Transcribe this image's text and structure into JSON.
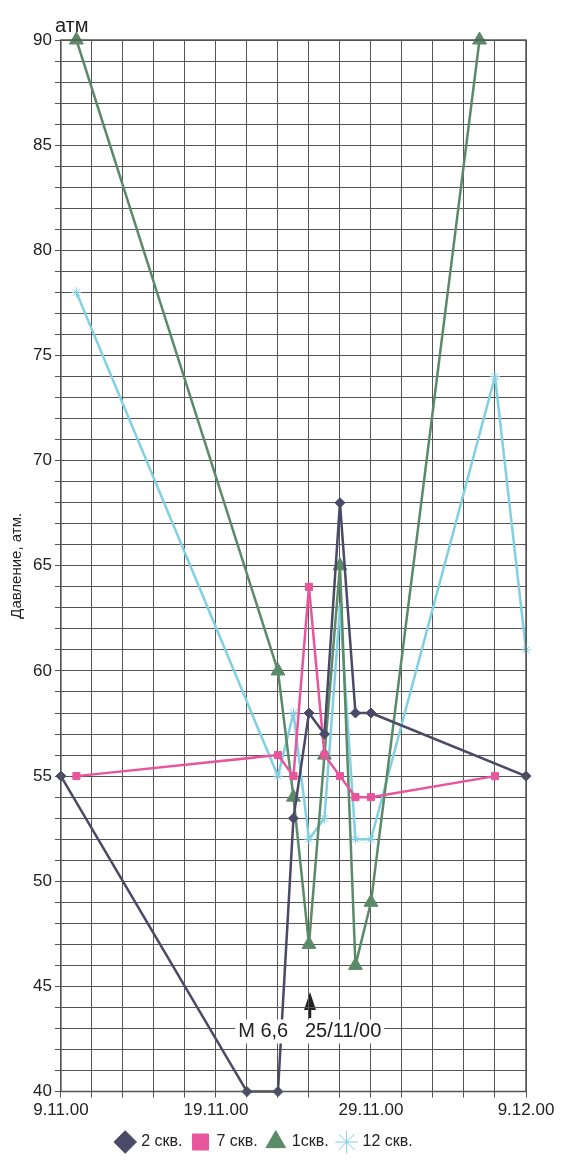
{
  "chart_data": {
    "type": "line",
    "ylabel": "Давление, атм.",
    "annotations": [
      "атм",
      "M 6,6   25/11/00"
    ],
    "xlim": [
      "2000-11-09",
      "2000-12-09"
    ],
    "xticks": [
      {
        "value": "2000-11-09",
        "label": "9.11.00"
      },
      {
        "value": "2000-11-11",
        "label": null
      },
      {
        "value": "2000-11-13",
        "label": null
      },
      {
        "value": "2000-11-15",
        "label": null
      },
      {
        "value": "2000-11-17",
        "label": null
      },
      {
        "value": "2000-11-19",
        "label": "19.11.00"
      },
      {
        "value": "2000-11-21",
        "label": null
      },
      {
        "value": "2000-11-23",
        "label": null
      },
      {
        "value": "2000-11-25",
        "label": null
      },
      {
        "value": "2000-11-27",
        "label": null
      },
      {
        "value": "2000-11-29",
        "label": "29.11.00"
      },
      {
        "value": "2000-12-01",
        "label": null
      },
      {
        "value": "2000-12-03",
        "label": null
      },
      {
        "value": "2000-12-05",
        "label": null
      },
      {
        "value": "2000-12-07",
        "label": null
      },
      {
        "value": "2000-12-09",
        "label": "9.12.00"
      }
    ],
    "ylim": [
      40,
      90
    ],
    "yticks": [
      40,
      {
        "value": 41,
        "label": null
      },
      {
        "value": 42,
        "label": null
      },
      {
        "value": 43,
        "label": null
      },
      {
        "value": 44,
        "label": null
      },
      45,
      {
        "value": 46,
        "label": null
      },
      {
        "value": 47,
        "label": null
      },
      {
        "value": 48,
        "label": null
      },
      {
        "value": 49,
        "label": null
      },
      50,
      {
        "value": 51,
        "label": null
      },
      {
        "value": 52,
        "label": null
      },
      {
        "value": 53,
        "label": null
      },
      {
        "value": 54,
        "label": null
      },
      55,
      {
        "value": 56,
        "label": null
      },
      {
        "value": 57,
        "label": null
      },
      {
        "value": 58,
        "label": null
      },
      {
        "value": 59,
        "label": null
      },
      60,
      {
        "value": 61,
        "label": null
      },
      {
        "value": 62,
        "label": null
      },
      {
        "value": 63,
        "label": null
      },
      {
        "value": 64,
        "label": null
      },
      65,
      {
        "value": 66,
        "label": null
      },
      {
        "value": 67,
        "label": null
      },
      {
        "value": 68,
        "label": null
      },
      {
        "value": 69,
        "label": null
      },
      70,
      {
        "value": 71,
        "label": null
      },
      {
        "value": 72,
        "label": null
      },
      {
        "value": 73,
        "label": null
      },
      {
        "value": 74,
        "label": null
      },
      75,
      {
        "value": 76,
        "label": null
      },
      {
        "value": 77,
        "label": null
      },
      {
        "value": 78,
        "label": null
      },
      {
        "value": 79,
        "label": null
      },
      80,
      {
        "value": 81,
        "label": null
      },
      {
        "value": 82,
        "label": null
      },
      {
        "value": 83,
        "label": null
      },
      {
        "value": 84,
        "label": null
      },
      85,
      {
        "value": 86,
        "label": null
      },
      {
        "value": 87,
        "label": null
      },
      {
        "value": 88,
        "label": null
      },
      {
        "value": 89,
        "label": null
      },
      90
    ],
    "grid": true,
    "legend": "bottom",
    "series": [
      {
        "name": "2 скв.",
        "color": "#4a4a68",
        "marker": "diamond",
        "x": [
          "2000-11-09",
          "2000-11-21",
          "2000-11-23",
          "2000-11-24",
          "2000-11-25",
          "2000-11-26",
          "2000-11-27",
          "2000-11-28",
          "2000-11-29",
          "2000-12-09"
        ],
        "values": [
          55,
          40,
          40,
          53,
          58,
          57,
          68,
          58,
          58,
          55
        ]
      },
      {
        "name": "7 скв.",
        "color": "#e8559d",
        "marker": "square",
        "x": [
          "2000-11-10",
          "2000-11-23",
          "2000-11-24",
          "2000-11-25",
          "2000-11-26",
          "2000-11-27",
          "2000-11-28",
          "2000-11-29",
          "2000-12-07"
        ],
        "values": [
          55,
          56,
          55,
          64,
          56,
          55,
          54,
          54,
          55
        ]
      },
      {
        "name": "1скв.",
        "color": "#5b8a68",
        "marker": "triangle",
        "x": [
          "2000-11-10",
          "2000-11-23",
          "2000-11-24",
          "2000-11-25",
          "2000-11-26",
          "2000-11-27",
          "2000-11-28",
          "2000-11-29",
          "2000-12-06"
        ],
        "values": [
          90,
          60,
          54,
          47,
          56,
          65,
          46,
          49,
          90
        ]
      },
      {
        "name": "12 скв.",
        "color": "#80d0e2",
        "marker": "cross",
        "x": [
          "2000-11-10",
          "2000-11-23",
          "2000-11-24",
          "2000-11-25",
          "2000-11-26",
          "2000-11-27",
          "2000-11-28",
          "2000-11-29",
          "2000-12-07",
          "2000-12-09"
        ],
        "values": [
          78,
          55,
          58,
          52,
          53,
          63,
          52,
          52,
          74,
          61
        ]
      }
    ]
  }
}
